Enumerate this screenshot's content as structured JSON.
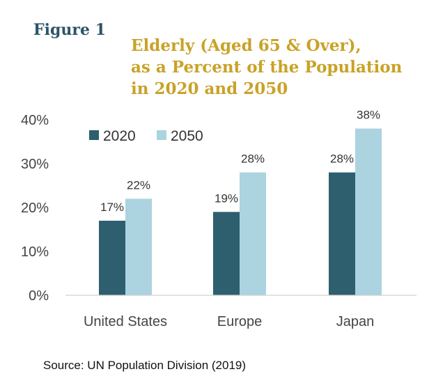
{
  "figure_label": "Figure 1",
  "title_lines": [
    "Elderly (Aged 65 & Over),",
    "as a Percent of the Population",
    "in 2020 and 2050"
  ],
  "source": "Source: UN Population Division (2019)",
  "colors": {
    "series_2020": "#2d5f6e",
    "series_2050": "#abd3e0",
    "title": "#c9a227",
    "figure_label": "#2c5566"
  },
  "chart_data": {
    "type": "bar",
    "title": "Elderly (Aged 65 & Over), as a Percent of the Population in 2020 and 2050",
    "categories": [
      "United States",
      "Europe",
      "Japan"
    ],
    "series": [
      {
        "name": "2020",
        "values": [
          17,
          19,
          28
        ],
        "labels": [
          "17%",
          "19%",
          "28%"
        ],
        "color": "#2d5f6e"
      },
      {
        "name": "2050",
        "values": [
          22,
          28,
          38
        ],
        "labels": [
          "22%",
          "28%",
          "38%"
        ],
        "color": "#abd3e0"
      }
    ],
    "y_ticks": [
      0,
      10,
      20,
      30,
      40
    ],
    "y_tick_labels": [
      "0%",
      "10%",
      "20%",
      "30%",
      "40%"
    ],
    "ylim": [
      0,
      40
    ],
    "xlabel": "",
    "ylabel": "",
    "grid": false,
    "legend_position": "top-left"
  }
}
